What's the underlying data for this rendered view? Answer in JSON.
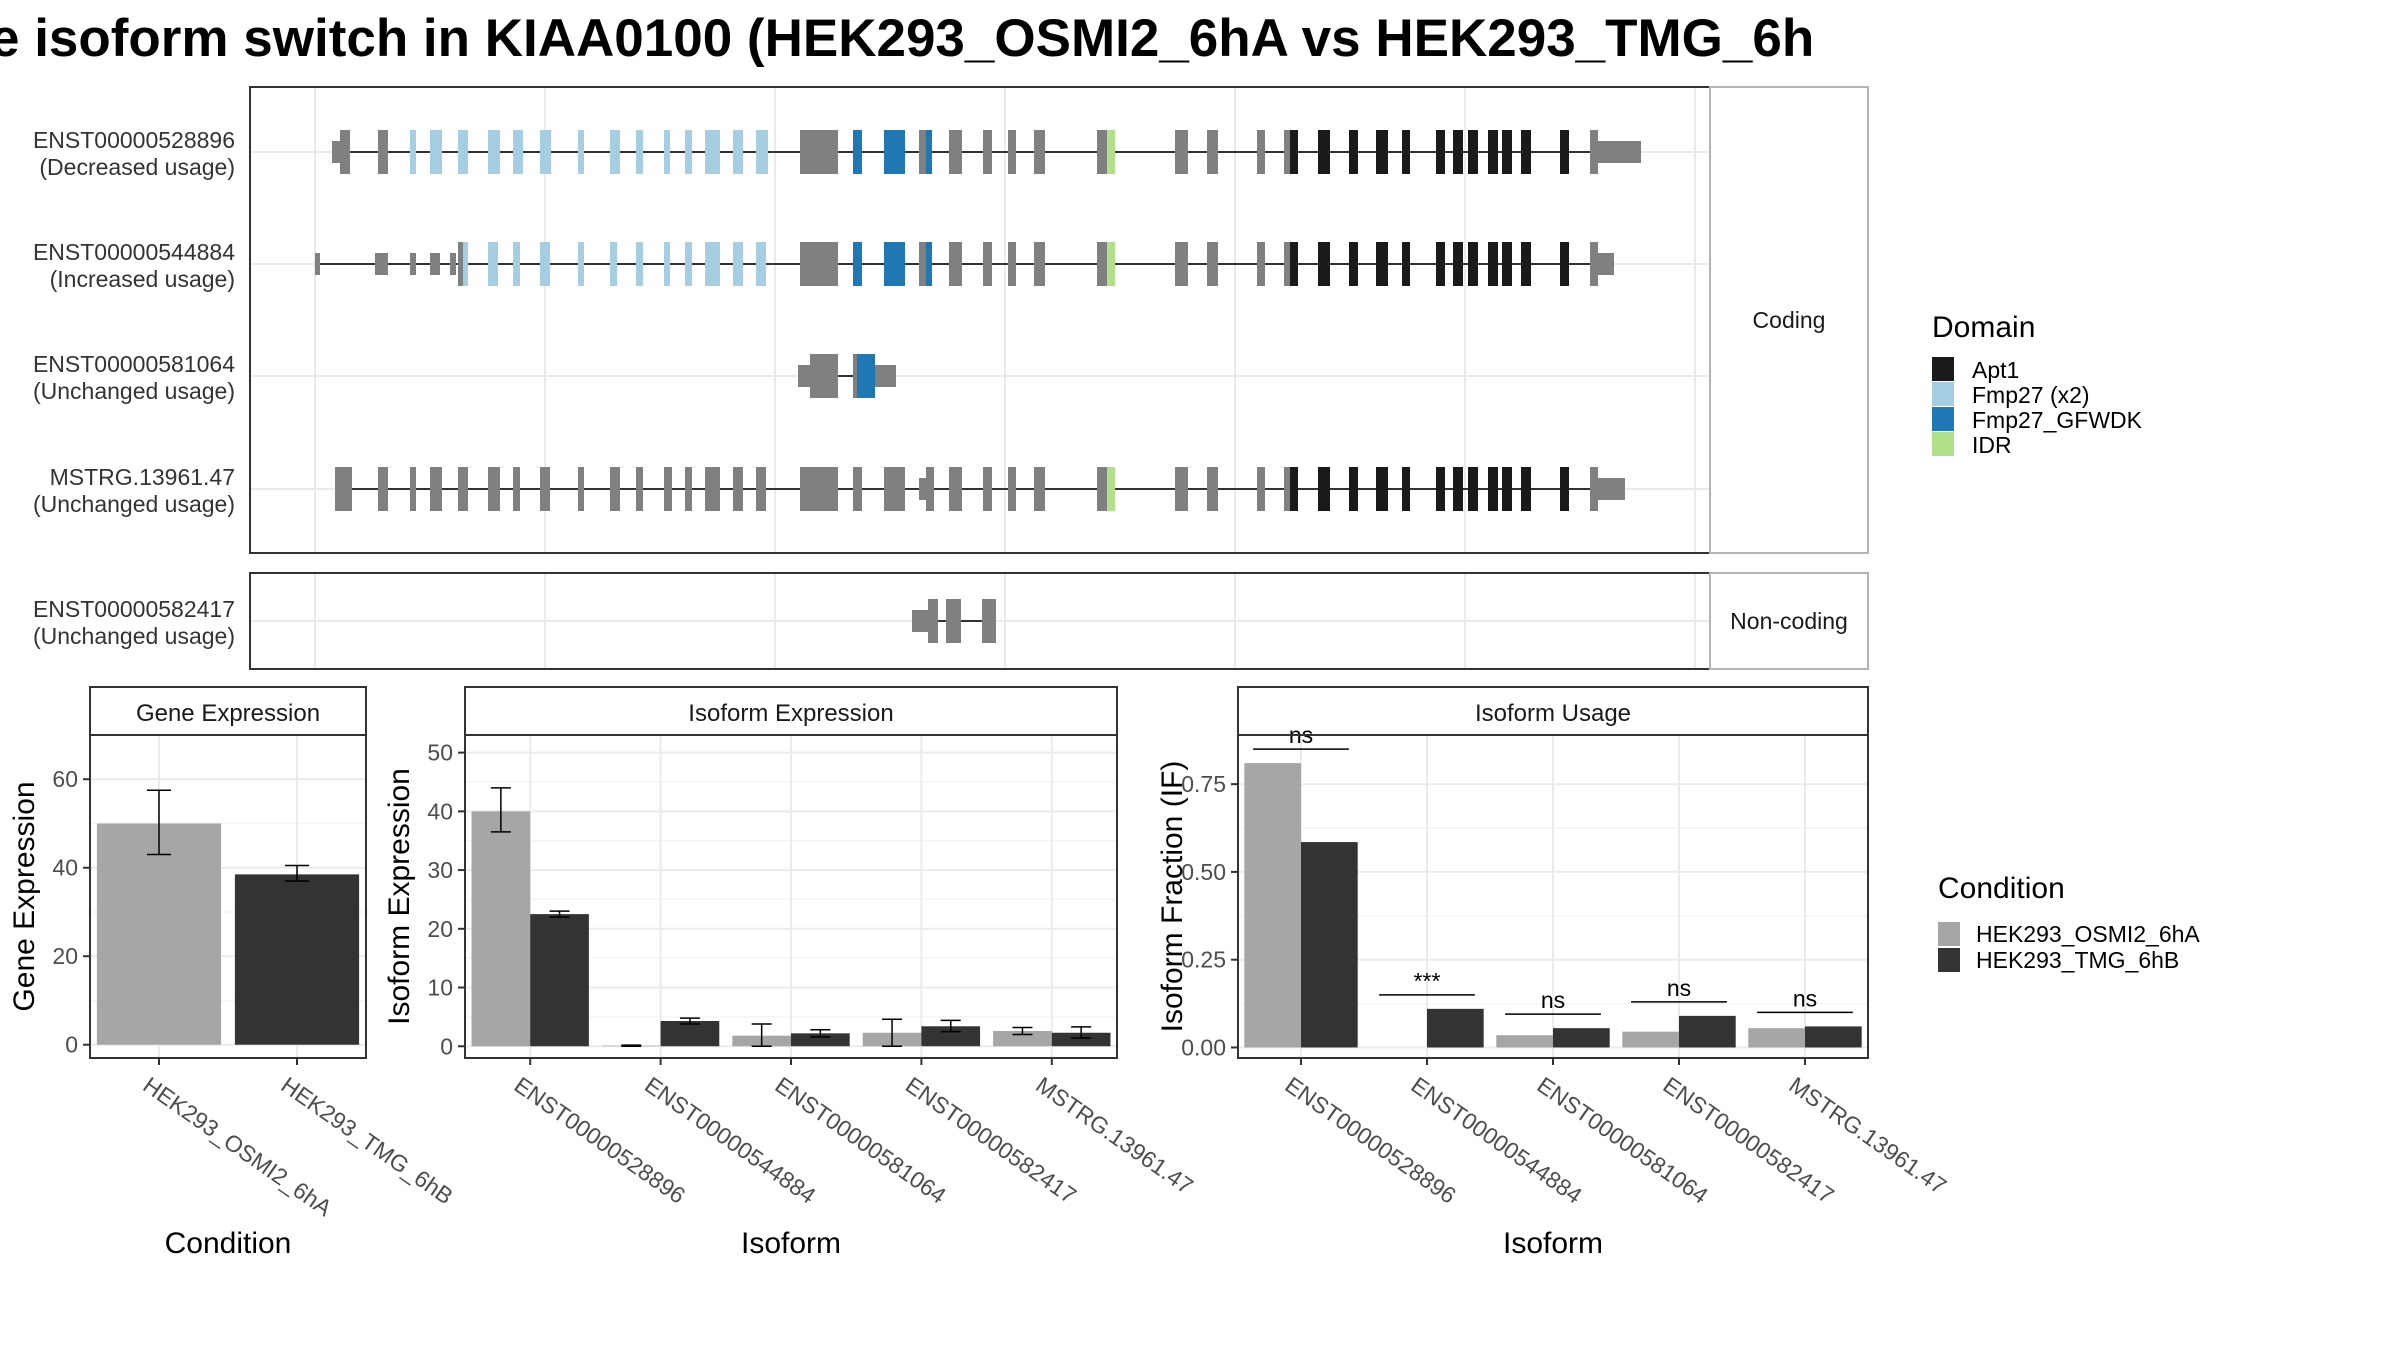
{
  "title": "e isoform switch in KIAA0100 (HEK293_OSMI2_6hA vs HEK293_TMG_6h",
  "colors": {
    "exon": "#808080",
    "apt1": "#1a1a1a",
    "fmp27": "#a6cee3",
    "fmp27_gfwdk": "#1f78b4",
    "idr": "#b2df8a",
    "cond_a": "#a6a6a6",
    "cond_b": "#333333"
  },
  "structure": {
    "panels": [
      {
        "label": "Coding",
        "isoforms": [
          {
            "id": "ENST00000528896",
            "usage": "(Decreased usage)"
          },
          {
            "id": "ENST00000544884",
            "usage": "(Increased usage)"
          },
          {
            "id": "ENST00000581064",
            "usage": "(Unchanged usage)"
          },
          {
            "id": "MSTRG.13961.47",
            "usage": "(Unchanged usage)"
          }
        ]
      },
      {
        "label": "Non-coding",
        "isoforms": [
          {
            "id": "ENST00000582417",
            "usage": "(Unchanged usage)"
          }
        ]
      }
    ],
    "legend": {
      "title": "Domain",
      "items": [
        "Apt1",
        "Fmp27 (x2)",
        "Fmp27_GFWDK",
        "IDR"
      ]
    }
  },
  "chart_data": [
    {
      "type": "bar",
      "title": "Gene Expression",
      "xlabel": "Condition",
      "ylabel": "Gene Expression",
      "categories": [
        "HEK293_OSMI2_6hA",
        "HEK293_TMG_6hB"
      ],
      "values": [
        50,
        38.5
      ],
      "errors": [
        [
          43,
          57.5
        ],
        [
          37,
          40.5
        ]
      ],
      "ylim": [
        -3,
        70
      ],
      "yticks": [
        0,
        20,
        40,
        60
      ]
    },
    {
      "type": "bar",
      "title": "Isoform Expression",
      "xlabel": "Isoform",
      "ylabel": "Isoform Expression",
      "categories": [
        "ENST00000528896",
        "ENST00000544884",
        "ENST00000581064",
        "ENST00000582417",
        "MSTRG.13961.47"
      ],
      "series": [
        {
          "name": "HEK293_OSMI2_6hA",
          "values": [
            40,
            0.1,
            1.8,
            2.3,
            2.6
          ],
          "errors": [
            [
              36.5,
              44
            ],
            [
              0,
              0.2
            ],
            [
              0,
              3.8
            ],
            [
              0,
              4.6
            ],
            [
              2,
              3.2
            ]
          ]
        },
        {
          "name": "HEK293_TMG_6hB",
          "values": [
            22.5,
            4.3,
            2.2,
            3.4,
            2.3
          ],
          "errors": [
            [
              22,
              23
            ],
            [
              3.8,
              4.8
            ],
            [
              1.6,
              2.8
            ],
            [
              2.5,
              4.4
            ],
            [
              1.4,
              3.3
            ]
          ]
        }
      ],
      "ylim": [
        -2,
        53
      ],
      "yticks": [
        0,
        10,
        20,
        30,
        40,
        50
      ]
    },
    {
      "type": "bar",
      "title": "Isoform Usage",
      "xlabel": "Isoform",
      "ylabel": "Isoform Fraction (IF)",
      "categories": [
        "ENST00000528896",
        "ENST00000544884",
        "ENST00000581064",
        "ENST00000582417",
        "MSTRG.13961.47"
      ],
      "series": [
        {
          "name": "HEK293_OSMI2_6hA",
          "values": [
            0.81,
            0,
            0.035,
            0.045,
            0.055
          ]
        },
        {
          "name": "HEK293_TMG_6hB",
          "values": [
            0.585,
            0.11,
            0.055,
            0.09,
            0.06
          ]
        }
      ],
      "significance": [
        "ns",
        "***",
        "ns",
        "ns",
        "ns"
      ],
      "ylim": [
        -0.03,
        0.89
      ],
      "yticks": [
        "0.00",
        "0.25",
        "0.50",
        "0.75"
      ]
    }
  ],
  "condition_legend": {
    "title": "Condition",
    "items": [
      "HEK293_OSMI2_6hA",
      "HEK293_TMG_6hB"
    ]
  }
}
